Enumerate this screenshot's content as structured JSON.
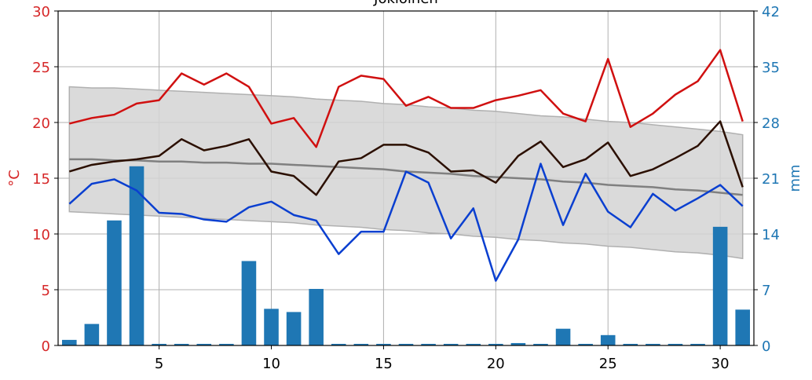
{
  "chart_data": {
    "type": "line",
    "title": "Jokioinen",
    "ylabel": "°C",
    "y2label": "mm",
    "x": [
      1,
      2,
      3,
      4,
      5,
      6,
      7,
      8,
      9,
      10,
      11,
      12,
      13,
      14,
      15,
      16,
      17,
      18,
      19,
      20,
      21,
      22,
      23,
      24,
      25,
      26,
      27,
      28,
      29,
      30,
      31
    ],
    "xlim": [
      0.5,
      31.5
    ],
    "xticks": [
      5,
      10,
      15,
      20,
      25,
      30
    ],
    "ylim": [
      0,
      30
    ],
    "yticks": [
      0,
      5,
      10,
      15,
      20,
      25,
      30
    ],
    "y2lim": [
      0,
      42
    ],
    "y2ticks": [
      0,
      7,
      14,
      21,
      28,
      35,
      42
    ],
    "grid": true,
    "ycolor": "#d62728",
    "y2color": "#1f77b4",
    "band": {
      "color": "#d3d3d3",
      "edge": "#b0b0b0",
      "upper": [
        23.2,
        23.1,
        23.1,
        23.0,
        22.9,
        22.8,
        22.7,
        22.6,
        22.5,
        22.4,
        22.3,
        22.1,
        22.0,
        21.9,
        21.7,
        21.6,
        21.4,
        21.3,
        21.1,
        21.0,
        20.8,
        20.6,
        20.5,
        20.3,
        20.1,
        20.0,
        19.8,
        19.6,
        19.4,
        19.2,
        18.9
      ],
      "lower": [
        12.0,
        11.9,
        11.8,
        11.7,
        11.6,
        11.5,
        11.4,
        11.3,
        11.2,
        11.1,
        11.0,
        10.8,
        10.7,
        10.6,
        10.4,
        10.3,
        10.1,
        10.0,
        9.8,
        9.7,
        9.5,
        9.4,
        9.2,
        9.1,
        8.9,
        8.8,
        8.6,
        8.4,
        8.3,
        8.1,
        7.8
      ]
    },
    "series": [
      {
        "color": "#1f77b4",
        "axis": "y2",
        "style": "bar",
        "values": [
          0.7,
          2.7,
          15.7,
          22.5,
          0.2,
          0.2,
          0.2,
          0.2,
          10.6,
          4.6,
          4.2,
          7.1,
          0.2,
          0.2,
          0.2,
          0.2,
          0.2,
          0.2,
          0.2,
          0.2,
          0.3,
          0.2,
          2.1,
          0.2,
          1.3,
          0.2,
          0.2,
          0.2,
          0.2,
          14.9,
          4.5
        ]
      },
      {
        "color": "#808080",
        "style": "line",
        "values": [
          16.7,
          16.7,
          16.6,
          16.6,
          16.5,
          16.5,
          16.4,
          16.4,
          16.3,
          16.3,
          16.2,
          16.1,
          16.0,
          15.9,
          15.8,
          15.6,
          15.5,
          15.4,
          15.2,
          15.1,
          15.0,
          14.9,
          14.7,
          14.6,
          14.4,
          14.3,
          14.2,
          14.0,
          13.9,
          13.7,
          13.5
        ]
      },
      {
        "color": "#d01010",
        "style": "line",
        "values": [
          19.9,
          20.4,
          20.7,
          21.7,
          22.0,
          24.4,
          23.4,
          24.4,
          23.2,
          19.9,
          20.4,
          17.8,
          23.2,
          24.2,
          23.9,
          21.5,
          22.3,
          21.3,
          21.3,
          22.0,
          22.4,
          22.9,
          20.8,
          20.1,
          25.7,
          19.6,
          20.8,
          22.5,
          23.7,
          26.5,
          20.1
        ]
      },
      {
        "color": "#2b0f00",
        "style": "line",
        "values": [
          15.6,
          16.2,
          16.5,
          16.7,
          17.0,
          18.5,
          17.5,
          17.9,
          18.5,
          15.6,
          15.2,
          13.5,
          16.5,
          16.8,
          18.0,
          18.0,
          17.3,
          15.6,
          15.7,
          14.6,
          17.0,
          18.3,
          16.0,
          16.7,
          18.2,
          15.2,
          15.8,
          16.8,
          17.9,
          20.1,
          14.2
        ]
      },
      {
        "color": "#0a3fd0",
        "style": "line",
        "values": [
          12.7,
          14.5,
          14.9,
          13.9,
          11.9,
          11.8,
          11.3,
          11.1,
          12.4,
          12.9,
          11.7,
          11.2,
          8.2,
          10.2,
          10.2,
          15.6,
          14.6,
          9.6,
          12.3,
          5.8,
          9.5,
          16.3,
          10.8,
          15.4,
          12.0,
          10.6,
          13.6,
          12.1,
          13.2,
          14.4,
          12.5
        ]
      }
    ]
  }
}
